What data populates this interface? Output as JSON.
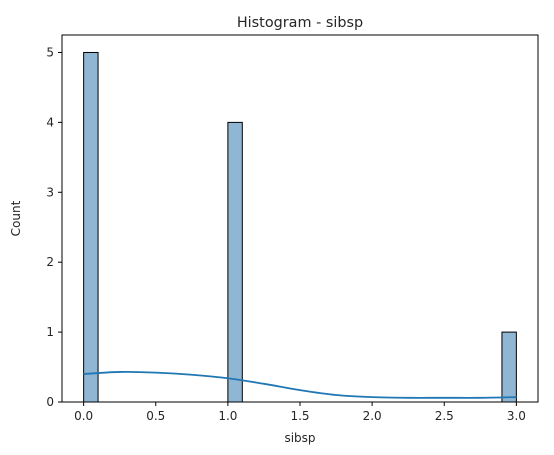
{
  "chart_data": {
    "type": "bar",
    "title": "Histogram - sibsp",
    "xlabel": "sibsp",
    "ylabel": "Count",
    "xlim": [
      -0.15,
      3.15
    ],
    "ylim": [
      0,
      5.25
    ],
    "xticks": [
      0.0,
      0.5,
      1.0,
      1.5,
      2.0,
      2.5,
      3.0
    ],
    "xtick_labels": [
      "0.0",
      "0.5",
      "1.0",
      "1.5",
      "2.0",
      "2.5",
      "3.0"
    ],
    "yticks": [
      0,
      1,
      2,
      3,
      4,
      5
    ],
    "ytick_labels": [
      "0",
      "1",
      "2",
      "3",
      "4",
      "5"
    ],
    "bins": [
      {
        "x0": 0.0,
        "x1": 0.1,
        "count": 5
      },
      {
        "x0": 1.0,
        "x1": 1.1,
        "count": 4
      },
      {
        "x0": 2.9,
        "x1": 3.0,
        "count": 1
      }
    ],
    "kde": {
      "x": [
        0.0,
        0.25,
        0.5,
        0.75,
        1.0,
        1.25,
        1.5,
        1.75,
        2.0,
        2.25,
        2.5,
        2.75,
        3.0
      ],
      "y": [
        0.4,
        0.43,
        0.42,
        0.39,
        0.34,
        0.26,
        0.17,
        0.1,
        0.07,
        0.06,
        0.06,
        0.06,
        0.07
      ]
    },
    "grid": false,
    "colors": {
      "bar_fill": "#8fb6d3",
      "bar_edge": "#000000",
      "kde_line": "#1f77b4",
      "axes": "#000000",
      "text": "#262626"
    }
  }
}
